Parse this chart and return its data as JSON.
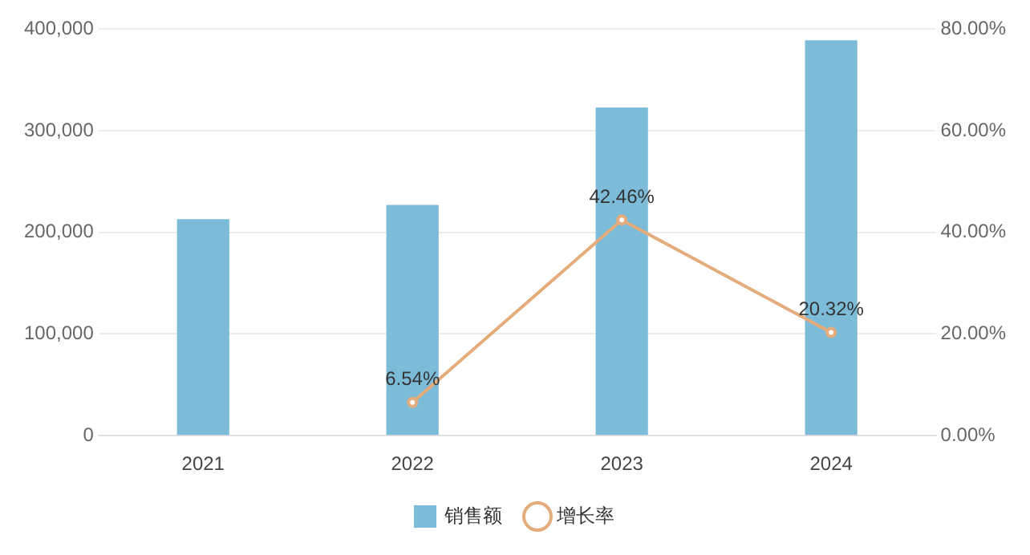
{
  "chart_data": {
    "type": "bar",
    "categories": [
      "2021",
      "2022",
      "2023",
      "2024"
    ],
    "series": [
      {
        "name": "销售额",
        "color": "#7dbcd9",
        "values": [
          213000,
          227000,
          323000,
          389000
        ]
      },
      {
        "name": "增长率",
        "type": "line",
        "axis": "y2",
        "color": "#e3ac7a",
        "values": [
          null,
          6.54,
          42.46,
          20.32
        ],
        "value_labels": [
          null,
          "6.54%",
          "42.46%",
          "20.32%"
        ],
        "marker": "circle"
      }
    ],
    "ylim": [
      0,
      400000
    ],
    "yticks": [
      0,
      {
        "value": 100000,
        "label": "100,000"
      },
      {
        "value": 200000,
        "label": "200,000"
      },
      {
        "value": 300000,
        "label": "300,000"
      },
      {
        "value": 400000,
        "label": "400,000"
      }
    ],
    "y2lim": [
      0,
      80
    ],
    "y2ticks": [
      {
        "value": 0,
        "label": "0.00%"
      },
      {
        "value": 20,
        "label": "20.00%"
      },
      {
        "value": 40,
        "label": "40.00%"
      },
      {
        "value": 60,
        "label": "60.00%"
      },
      {
        "value": 80,
        "label": "80.00%"
      }
    ],
    "grid": "y",
    "legend": "bottom"
  }
}
